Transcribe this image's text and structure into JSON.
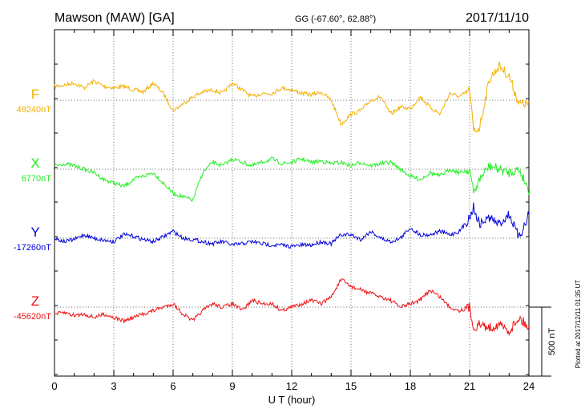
{
  "header": {
    "station": "Mawson (MAW)  [GA]",
    "coords": "GG (-67.60°,  62.88°)",
    "date": "2017/11/10"
  },
  "plotted_note": "Plotted at 2017/12/11 01:35 UT",
  "scale_label": "500 nT",
  "chart_data": {
    "type": "line",
    "title": "Mawson (MAW)  [GA]",
    "xlabel": "U T (hour)",
    "xlim": [
      0,
      24
    ],
    "xticks": [
      0,
      3,
      6,
      9,
      12,
      15,
      18,
      21,
      24
    ],
    "xtick_labels": [
      "0",
      "3",
      "6",
      "9",
      "12",
      "15",
      "18",
      "21",
      "24"
    ],
    "scale_nT": 500,
    "grid": true,
    "series": [
      {
        "name": "F",
        "baseline_label": "49240nT",
        "color": "#f5b000",
        "x": [
          0,
          0.5,
          1,
          1.5,
          2,
          2.5,
          3,
          3.5,
          4,
          4.5,
          5,
          5.5,
          6,
          6.5,
          7,
          7.5,
          8,
          8.5,
          9,
          9.5,
          10,
          10.5,
          11,
          11.5,
          12,
          12.5,
          13,
          13.5,
          14,
          14.5,
          15,
          15.5,
          16,
          16.5,
          17,
          17.5,
          18,
          18.5,
          19,
          19.5,
          20,
          20.5,
          21,
          21.2,
          21.5,
          22,
          22.5,
          23,
          23.5,
          24
        ],
        "y": [
          20,
          22,
          25,
          18,
          28,
          20,
          18,
          20,
          15,
          12,
          25,
          10,
          -15,
          -5,
          5,
          12,
          15,
          10,
          25,
          15,
          5,
          10,
          10,
          18,
          15,
          10,
          8,
          12,
          0,
          -35,
          -20,
          -15,
          0,
          5,
          -20,
          -10,
          -12,
          5,
          -10,
          -20,
          10,
          5,
          15,
          -45,
          -40,
          30,
          50,
          35,
          -5,
          -5
        ]
      },
      {
        "name": "X",
        "baseline_label": "6770nT",
        "color": "#22ee22",
        "x": [
          0,
          0.5,
          1,
          1.5,
          2,
          2.5,
          3,
          3.5,
          4,
          4.5,
          5,
          5.5,
          6,
          6.5,
          7,
          7.5,
          8,
          8.5,
          9,
          9.5,
          10,
          10.5,
          11,
          11.5,
          12,
          12.5,
          13,
          13.5,
          14,
          14.5,
          15,
          15.5,
          16,
          16.5,
          17,
          17.5,
          18,
          18.5,
          19,
          19.5,
          20,
          20.5,
          21,
          21.2,
          21.5,
          22,
          22.5,
          23,
          23.5,
          24
        ],
        "y": [
          5,
          8,
          5,
          0,
          -5,
          -15,
          -20,
          -25,
          -15,
          -10,
          -5,
          -20,
          -35,
          -40,
          -45,
          -5,
          10,
          5,
          15,
          10,
          5,
          10,
          15,
          8,
          10,
          15,
          10,
          12,
          8,
          10,
          5,
          10,
          5,
          8,
          10,
          0,
          -10,
          -15,
          -5,
          -10,
          0,
          -5,
          0,
          -35,
          -15,
          5,
          0,
          -5,
          0,
          -30
        ]
      },
      {
        "name": "Y",
        "baseline_label": "-17260nT",
        "color": "#0000dd",
        "x": [
          0,
          0.5,
          1,
          1.5,
          2,
          2.5,
          3,
          3.5,
          4,
          4.5,
          5,
          5.5,
          6,
          6.5,
          7,
          7.5,
          8,
          8.5,
          9,
          9.5,
          10,
          10.5,
          11,
          11.5,
          12,
          12.5,
          13,
          13.5,
          14,
          14.5,
          15,
          15.5,
          16,
          16.5,
          17,
          17.5,
          18,
          18.5,
          19,
          19.5,
          20,
          20.5,
          21,
          21.2,
          21.5,
          22,
          22.5,
          23,
          23.5,
          24
        ],
        "y": [
          0,
          -5,
          -2,
          5,
          0,
          -3,
          -5,
          5,
          3,
          -2,
          -5,
          2,
          10,
          0,
          -2,
          -5,
          -8,
          -5,
          -10,
          -8,
          -5,
          -8,
          -10,
          -10,
          -12,
          -10,
          -10,
          -5,
          -8,
          5,
          5,
          -2,
          10,
          0,
          -5,
          0,
          15,
          5,
          5,
          10,
          5,
          10,
          30,
          45,
          20,
          30,
          20,
          35,
          0,
          35
        ]
      },
      {
        "name": "Z",
        "baseline_label": "-45620nT",
        "color": "#ee1111",
        "x": [
          0,
          0.5,
          1,
          1.5,
          2,
          2.5,
          3,
          3.5,
          4,
          4.5,
          5,
          5.5,
          6,
          6.5,
          7,
          7.5,
          8,
          8.5,
          9,
          9.5,
          10,
          10.5,
          11,
          11.5,
          12,
          12.5,
          13,
          13.5,
          14,
          14.5,
          15,
          15.5,
          16,
          16.5,
          17,
          17.5,
          18,
          18.5,
          19,
          19.5,
          20,
          20.5,
          21,
          21.2,
          21.5,
          22,
          22.5,
          23,
          23.5,
          24
        ],
        "y": [
          -10,
          -8,
          -12,
          -10,
          -15,
          -10,
          -15,
          -20,
          -15,
          -10,
          -5,
          0,
          5,
          -10,
          -20,
          -5,
          5,
          0,
          5,
          -5,
          10,
          5,
          5,
          -5,
          0,
          5,
          10,
          5,
          15,
          40,
          30,
          25,
          20,
          15,
          10,
          0,
          5,
          10,
          25,
          15,
          0,
          -5,
          0,
          -30,
          -25,
          -30,
          -25,
          -35,
          -15,
          -30
        ]
      }
    ]
  }
}
